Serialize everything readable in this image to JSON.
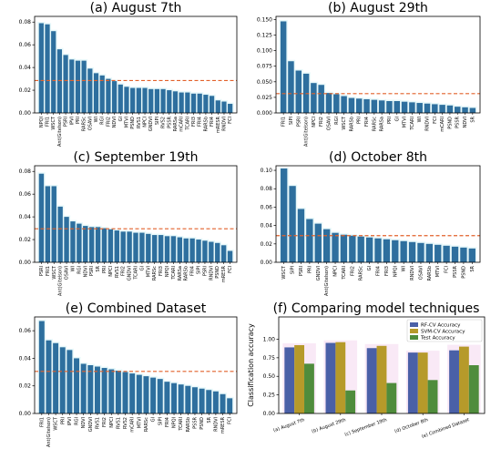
{
  "chart_data": [
    {
      "type": "bar",
      "title": "(a) August 7th",
      "ylim": [
        0,
        0.085
      ],
      "yticks": [
        0.0,
        0.02,
        0.04,
        0.06,
        0.08
      ],
      "ytick_labels": [
        "0.00",
        "0.02",
        "0.04",
        "0.06",
        "0.08"
      ],
      "threshold": 0.0285,
      "categories": [
        "NPQI",
        "FRI1",
        "WSCT",
        "Ant(Gitelson)",
        "PSRI",
        "IPVI",
        "PRI",
        "RARSc",
        "OSAVI",
        "WI",
        "RGI",
        "FRI2",
        "NDVI",
        "GI",
        "MTVI",
        "PSND",
        "RVS1",
        "NPCI",
        "GNDVI",
        "SIPI",
        "RVS2",
        "PSSR",
        "RARSa",
        "mCARI",
        "TCARI",
        "FRI3",
        "FRI4",
        "RARSb",
        "FRI4",
        "mRESR",
        "RNDVI",
        "FCI"
      ],
      "values": [
        0.079,
        0.078,
        0.072,
        0.056,
        0.051,
        0.047,
        0.046,
        0.046,
        0.039,
        0.035,
        0.033,
        0.03,
        0.028,
        0.025,
        0.023,
        0.022,
        0.022,
        0.022,
        0.021,
        0.021,
        0.021,
        0.02,
        0.019,
        0.018,
        0.018,
        0.017,
        0.017,
        0.016,
        0.015,
        0.011,
        0.01,
        0.008
      ]
    },
    {
      "type": "bar",
      "title": "(b) August 29th",
      "ylim": [
        0,
        0.155
      ],
      "yticks": [
        0.0,
        0.025,
        0.05,
        0.075,
        0.1,
        0.125,
        0.15
      ],
      "ytick_labels": [
        "0.000",
        "0.025",
        "0.050",
        "0.075",
        "0.100",
        "0.125",
        "0.150"
      ],
      "threshold": 0.031,
      "categories": [
        "FRI1",
        "SIPI",
        "PSRI",
        "Ant(Gitelson)",
        "NPCI",
        "FRI2",
        "OSAVI",
        "RGI",
        "WSCT",
        "RARSb",
        "PRI",
        "FRI4",
        "RARSc",
        "RARSa",
        "PRI",
        "GI",
        "MTVI",
        "TCARI",
        "WI",
        "RNDVI",
        "FCI",
        "mCARI",
        "PSND",
        "PSSR",
        "NDVI",
        "SR"
      ],
      "values": [
        0.147,
        0.083,
        0.068,
        0.063,
        0.048,
        0.045,
        0.032,
        0.03,
        0.027,
        0.024,
        0.023,
        0.022,
        0.021,
        0.02,
        0.019,
        0.019,
        0.018,
        0.017,
        0.016,
        0.015,
        0.014,
        0.013,
        0.012,
        0.01,
        0.009,
        0.008
      ]
    },
    {
      "type": "bar",
      "title": "(c) September 19th",
      "ylim": [
        0,
        0.085
      ],
      "yticks": [
        0.0,
        0.02,
        0.04,
        0.06,
        0.08
      ],
      "ytick_labels": [
        "0.00",
        "0.02",
        "0.04",
        "0.06",
        "0.08"
      ],
      "threshold": 0.0295,
      "categories": [
        "PSRI",
        "FRI1",
        "WSCT",
        "Ant(Gitelson)",
        "OSAVI",
        "WI",
        "RGI",
        "NDVI",
        "PSRI",
        "SR",
        "PRI",
        "NPCI",
        "RVS1",
        "FRI2",
        "GNDVI",
        "TCARI",
        "GI",
        "MTVI",
        "RARSc",
        "FRI3",
        "NPQI",
        "TCARI",
        "RARSa",
        "RARSb",
        "FRI4",
        "SIPI",
        "PSRI",
        "RNDVI",
        "PSND",
        "mRESR",
        "FCI"
      ],
      "values": [
        0.078,
        0.067,
        0.067,
        0.049,
        0.04,
        0.036,
        0.034,
        0.032,
        0.031,
        0.031,
        0.03,
        0.029,
        0.028,
        0.027,
        0.027,
        0.026,
        0.026,
        0.025,
        0.024,
        0.024,
        0.023,
        0.023,
        0.022,
        0.021,
        0.021,
        0.02,
        0.019,
        0.018,
        0.017,
        0.015,
        0.01
      ]
    },
    {
      "type": "bar",
      "title": "(d) October 8th",
      "ylim": [
        0,
        0.105
      ],
      "yticks": [
        0.0,
        0.02,
        0.04,
        0.06,
        0.08,
        0.1
      ],
      "ytick_labels": [
        "0.00",
        "0.02",
        "0.04",
        "0.06",
        "0.08",
        "0.10"
      ],
      "threshold": 0.029,
      "categories": [
        "WSCT",
        "SIPI",
        "PSRI",
        "PRI",
        "GNDVI",
        "Ant(Gitelson)",
        "NPCI",
        "TCARI",
        "FRI2",
        "RARSc",
        "GI",
        "FRI4",
        "FRI3",
        "NPQI",
        "WI",
        "RNDVI",
        "OSAVI",
        "RARSb",
        "MTVI",
        "FCI",
        "PSSR",
        "PSND",
        "SR"
      ],
      "values": [
        0.102,
        0.083,
        0.058,
        0.047,
        0.042,
        0.036,
        0.032,
        0.03,
        0.029,
        0.028,
        0.027,
        0.026,
        0.025,
        0.024,
        0.023,
        0.022,
        0.021,
        0.02,
        0.019,
        0.018,
        0.017,
        0.016,
        0.015
      ]
    },
    {
      "type": "bar",
      "title": "(e) Combined Dataset",
      "ylim": [
        0,
        0.07
      ],
      "yticks": [
        0.0,
        0.02,
        0.04,
        0.06
      ],
      "ytick_labels": [
        "0.00",
        "0.02",
        "0.04",
        "0.06"
      ],
      "threshold": 0.0305,
      "categories": [
        "FRI1",
        "Ant(Gitelson)",
        "WSCT",
        "PRI",
        "IPVI",
        "RGI",
        "NDVI",
        "GNDVI",
        "RVS1",
        "FRI2",
        "NPCI",
        "RVS1",
        "RVS2",
        "mCARI",
        "MTVI",
        "RARSc",
        "GI",
        "SIPI",
        "FRI4",
        "NPQI",
        "TCARI",
        "RARSb",
        "PSSR",
        "PSND",
        "SR",
        "RNDVI",
        "mRESR",
        "FCI"
      ],
      "values": [
        0.067,
        0.053,
        0.051,
        0.048,
        0.046,
        0.04,
        0.036,
        0.035,
        0.034,
        0.033,
        0.032,
        0.031,
        0.03,
        0.029,
        0.028,
        0.027,
        0.026,
        0.025,
        0.023,
        0.022,
        0.021,
        0.02,
        0.019,
        0.018,
        0.017,
        0.016,
        0.014,
        0.011
      ]
    },
    {
      "type": "bar",
      "title": "(f) Comparing model techniques",
      "ylabel": "Classification accuracy",
      "ylim": [
        0,
        1.3
      ],
      "yticks": [
        0.0,
        0.25,
        0.5,
        0.75,
        1.0
      ],
      "ytick_labels": [
        "0.00",
        "0.25",
        "0.50",
        "0.75",
        "1.00"
      ],
      "categories": [
        "(a) August 7th",
        "(b) August 29th",
        "(c) September 19th",
        "(d) October 8th",
        "(e) Combined Dataset"
      ],
      "legend_position": "top-right",
      "series": [
        {
          "name": "RF-CV Accuracy",
          "values": [
            0.89,
            0.95,
            0.88,
            0.82,
            0.85
          ]
        },
        {
          "name": "SVM-CV Accuracy",
          "values": [
            0.92,
            0.96,
            0.91,
            0.82,
            0.9
          ]
        },
        {
          "name": "Test Accuracy",
          "values": [
            0.67,
            0.31,
            0.41,
            0.45,
            0.65
          ]
        }
      ]
    }
  ],
  "colors": {
    "bar": "#2e6f9e",
    "bar_dark": "#255f8a",
    "glow": "#d5f3f6",
    "threshold": "#e2612b",
    "series": [
      "#4a60a7",
      "#b69a2a",
      "#4f8c3c"
    ]
  }
}
